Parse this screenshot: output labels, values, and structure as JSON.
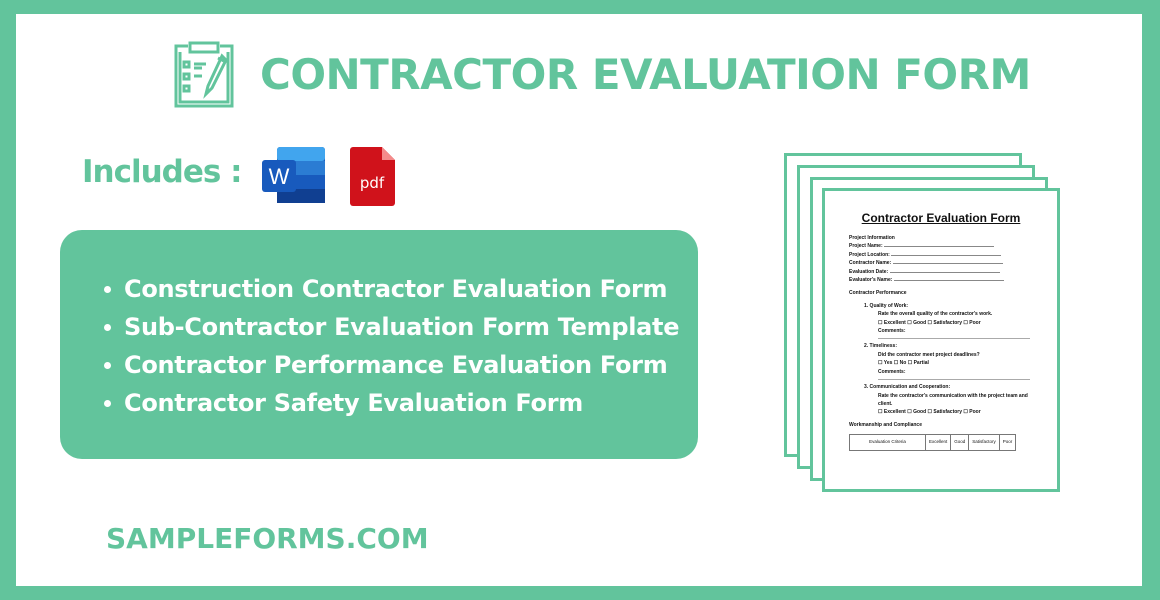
{
  "header": {
    "title": "CONTRACTOR EVALUATION FORM",
    "icon": "clipboard-checklist-icon"
  },
  "includes": {
    "label": "Includes :",
    "formats": [
      {
        "icon": "word-icon",
        "label": "W"
      },
      {
        "icon": "pdf-icon",
        "label": "pdf"
      }
    ]
  },
  "features": [
    "Construction Contractor Evaluation Form",
    "Sub-Contractor Evaluation Form Template",
    "Contractor Performance Evaluation Form",
    "Contractor Safety Evaluation Form"
  ],
  "footer": {
    "brand": "SAMPLEFORMS.COM"
  },
  "colors": {
    "accent": "#62c49c",
    "word": "#185abd",
    "pdf": "#d0121b"
  },
  "preview": {
    "title": "Contractor Evaluation Form",
    "section1": "Project Information",
    "fields": [
      "Project Name:",
      "Project Location:",
      "Contractor Name:",
      "Evaluation Date:",
      "Evaluator's Name:"
    ],
    "section2": "Contractor Performance",
    "q1": "1.  Quality of Work:",
    "q1a": "Rate the overall quality of the contractor's work.",
    "q1o": "☐ Excellent ☐ Good ☐ Satisfactory ☐ Poor",
    "comments": "Comments:",
    "q2": "2.  Timeliness:",
    "q2a": "Did the contractor meet project deadlines?",
    "q2o": "☐ Yes ☐ No ☐ Partial",
    "q3": "3.  Communication and Cooperation:",
    "q3a": "Rate the contractor's communication with the project team and client.",
    "q3o": "☐ Excellent ☐ Good ☐ Satisfactory ☐ Poor",
    "section3": "Workmanship and Compliance",
    "table_headers": [
      "Evaluation Criteria",
      "Excellent",
      "Good",
      "Satisfactory",
      "Poor"
    ]
  }
}
